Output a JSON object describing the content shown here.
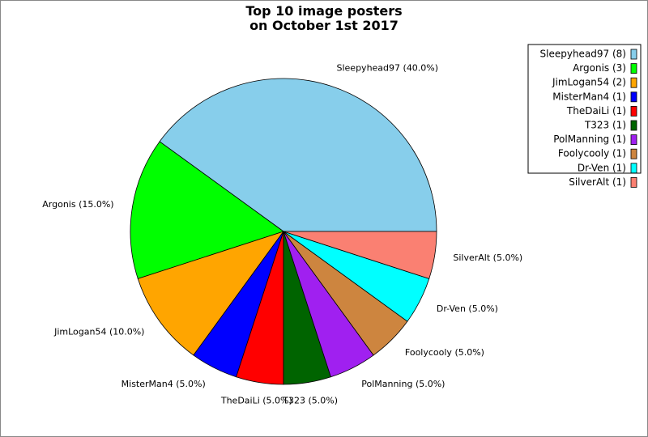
{
  "chart_data": {
    "type": "pie",
    "title": "Top 10 image posters\non October 1st 2017",
    "title_lines": [
      "Top 10 image posters",
      "on October 1st 2017"
    ],
    "start_angle_deg": 0,
    "direction": "counterclockwise",
    "legend_position": "top-right",
    "slices": [
      {
        "name": "Sleepyhead97",
        "count": 8,
        "percent": 40.0,
        "color": "#87CEEB",
        "label": "Sleepyhead97 (40.0%)",
        "legend": "Sleepyhead97 (8)"
      },
      {
        "name": "Argonis",
        "count": 3,
        "percent": 15.0,
        "color": "#00FF00",
        "label": "Argonis (15.0%)",
        "legend": "Argonis (3)"
      },
      {
        "name": "JimLogan54",
        "count": 2,
        "percent": 10.0,
        "color": "#FFA500",
        "label": "JimLogan54 (10.0%)",
        "legend": "JimLogan54 (2)"
      },
      {
        "name": "MisterMan4",
        "count": 1,
        "percent": 5.0,
        "color": "#0000FF",
        "label": "MisterMan4 (5.0%)",
        "legend": "MisterMan4 (1)"
      },
      {
        "name": "TheDaiLi",
        "count": 1,
        "percent": 5.0,
        "color": "#FF0000",
        "label": "TheDaiLi (5.0%)",
        "legend": "TheDaiLi (1)"
      },
      {
        "name": "T323",
        "count": 1,
        "percent": 5.0,
        "color": "#006400",
        "label": "T323 (5.0%)",
        "legend": "T323 (1)"
      },
      {
        "name": "PolManning",
        "count": 1,
        "percent": 5.0,
        "color": "#A020F0",
        "label": "PolManning (5.0%)",
        "legend": "PolManning (1)"
      },
      {
        "name": "Foolycooly",
        "count": 1,
        "percent": 5.0,
        "color": "#CD853F",
        "label": "Foolycooly (5.0%)",
        "legend": "Foolycooly (1)"
      },
      {
        "name": "Dr-Ven",
        "count": 1,
        "percent": 5.0,
        "color": "#00FFFF",
        "label": "Dr-Ven (5.0%)",
        "legend": "Dr-Ven (1)"
      },
      {
        "name": "SilverAlt",
        "count": 1,
        "percent": 5.0,
        "color": "#FA8072",
        "label": "SilverAlt (5.0%)",
        "legend": "SilverAlt (1)"
      }
    ]
  }
}
